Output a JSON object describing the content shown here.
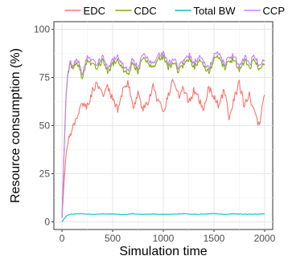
{
  "chart_data": {
    "type": "line",
    "xlabel": "Simulation time",
    "ylabel": "Resource consumption (%)",
    "xlim": [
      -80,
      2080
    ],
    "ylim": [
      -4,
      104
    ],
    "x_ticks": [
      0,
      500,
      1000,
      1500,
      2000
    ],
    "y_ticks": [
      0,
      25,
      50,
      75,
      100
    ],
    "x_tick_labels": [
      "0",
      "500",
      "1000",
      "1500",
      "2000"
    ],
    "y_tick_labels": [
      "0",
      "25",
      "50",
      "75",
      "100"
    ],
    "grid": true,
    "legend_position": "top",
    "series": [
      {
        "name": "EDC",
        "color": "#F8766D",
        "x": [
          0,
          20,
          40,
          60,
          80,
          100,
          150,
          200,
          250,
          300,
          350,
          400,
          450,
          500,
          550,
          600,
          650,
          700,
          750,
          800,
          850,
          900,
          950,
          1000,
          1050,
          1100,
          1150,
          1200,
          1250,
          1300,
          1350,
          1400,
          1450,
          1500,
          1550,
          1600,
          1650,
          1700,
          1750,
          1800,
          1850,
          1900,
          1950,
          2000
        ],
        "values": [
          2,
          20,
          35,
          42,
          45,
          48,
          55,
          62,
          60,
          68,
          72,
          65,
          70,
          63,
          58,
          68,
          72,
          60,
          66,
          58,
          62,
          70,
          62,
          57,
          66,
          74,
          65,
          70,
          62,
          68,
          64,
          58,
          70,
          65,
          60,
          68,
          55,
          64,
          72,
          60,
          66,
          56,
          50,
          66
        ]
      },
      {
        "name": "CDC",
        "color": "#7CAE00",
        "x": [
          0,
          20,
          40,
          60,
          80,
          100,
          150,
          200,
          250,
          300,
          350,
          400,
          450,
          500,
          550,
          600,
          650,
          700,
          750,
          800,
          850,
          900,
          950,
          1000,
          1050,
          1100,
          1150,
          1200,
          1250,
          1300,
          1350,
          1400,
          1450,
          1500,
          1550,
          1600,
          1650,
          1700,
          1750,
          1800,
          1850,
          1900,
          1950,
          2000
        ],
        "values": [
          2,
          35,
          65,
          78,
          82,
          80,
          83,
          75,
          84,
          82,
          80,
          84,
          78,
          82,
          84,
          80,
          76,
          83,
          78,
          85,
          82,
          80,
          84,
          86,
          80,
          83,
          78,
          82,
          85,
          80,
          84,
          81,
          78,
          84,
          86,
          80,
          83,
          85,
          78,
          84,
          80,
          85,
          79,
          82
        ]
      },
      {
        "name": "Total BW",
        "color": "#00BFC4",
        "x": [
          0,
          20,
          40,
          60,
          80,
          100,
          200,
          300,
          400,
          500,
          600,
          700,
          800,
          900,
          1000,
          1100,
          1200,
          1300,
          1400,
          1500,
          1600,
          1700,
          1800,
          1900,
          2000
        ],
        "values": [
          0,
          1.5,
          2.8,
          3.6,
          3.9,
          4.0,
          4.2,
          3.8,
          4.1,
          4.0,
          3.7,
          4.2,
          3.9,
          4.1,
          3.8,
          4.0,
          4.2,
          3.9,
          4.0,
          4.3,
          3.8,
          4.1,
          3.9,
          4.0,
          4.1
        ]
      },
      {
        "name": "CCP",
        "color": "#C77CFF",
        "x": [
          0,
          20,
          40,
          60,
          80,
          100,
          150,
          200,
          250,
          300,
          350,
          400,
          450,
          500,
          550,
          600,
          650,
          700,
          750,
          800,
          850,
          900,
          950,
          1000,
          1050,
          1100,
          1150,
          1200,
          1250,
          1300,
          1350,
          1400,
          1450,
          1500,
          1550,
          1600,
          1650,
          1700,
          1750,
          1800,
          1850,
          1900,
          1950,
          2000
        ],
        "values": [
          2,
          36,
          66,
          79,
          83,
          81,
          85,
          77,
          86,
          84,
          82,
          86,
          80,
          84,
          86,
          82,
          78,
          85,
          80,
          87,
          84,
          82,
          86,
          88,
          82,
          85,
          80,
          84,
          87,
          82,
          86,
          83,
          80,
          86,
          88,
          82,
          85,
          87,
          80,
          86,
          82,
          87,
          81,
          84
        ]
      }
    ]
  }
}
